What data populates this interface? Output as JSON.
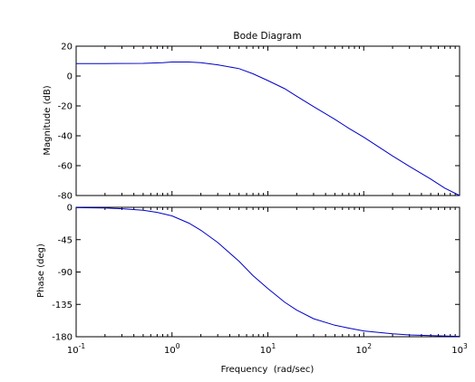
{
  "chart_data": [
    {
      "type": "line",
      "title": "Bode Diagram",
      "ylabel": "Magnitude (dB)",
      "xlabel": "",
      "xscale": "log",
      "xlim": [
        0.1,
        1000
      ],
      "ylim": [
        -80,
        20
      ],
      "yticks": [
        "20",
        "0",
        "-20",
        "-40",
        "-60",
        "-80"
      ],
      "grid": false,
      "series": [
        {
          "x": [
            0.1,
            0.2,
            0.5,
            0.8,
            1,
            1.5,
            2,
            3,
            5,
            7,
            10,
            15,
            20,
            30,
            50,
            70,
            100,
            200,
            300,
            500,
            700,
            1000
          ],
          "y": [
            8.3,
            8.35,
            8.5,
            8.9,
            9.4,
            9.4,
            9.0,
            7.5,
            5.0,
            1.5,
            -3.0,
            -8.5,
            -13.5,
            -20.5,
            -29.0,
            -35.0,
            -41.0,
            -53.5,
            -60.5,
            -69.0,
            -75.0,
            -80.0
          ]
        }
      ]
    },
    {
      "type": "line",
      "title": "",
      "ylabel": "Phase (deg)",
      "xlabel": "Frequency  (rad/sec)",
      "xscale": "log",
      "xlim": [
        0.1,
        1000
      ],
      "ylim": [
        -180,
        0
      ],
      "yticks": [
        "0",
        "-45",
        "-90",
        "-135",
        "-180"
      ],
      "xticks": [
        {
          "base": "10",
          "exp": "-1"
        },
        {
          "base": "10",
          "exp": "0"
        },
        {
          "base": "10",
          "exp": "1"
        },
        {
          "base": "10",
          "exp": "2"
        },
        {
          "base": "10",
          "exp": "3"
        }
      ],
      "grid": false,
      "series": [
        {
          "x": [
            0.1,
            0.2,
            0.3,
            0.5,
            0.7,
            1,
            1.5,
            2,
            3,
            5,
            7,
            10,
            15,
            20,
            30,
            50,
            70,
            100,
            200,
            300,
            500,
            1000
          ],
          "y": [
            -0.5,
            -1.0,
            -2.0,
            -4.0,
            -7.0,
            -12.0,
            -22.0,
            -32.0,
            -49.0,
            -75.0,
            -95.0,
            -113.0,
            -132.0,
            -143.0,
            -155.0,
            -164.0,
            -168.0,
            -172.0,
            -176.0,
            -177.5,
            -178.5,
            -179.5
          ]
        }
      ]
    }
  ]
}
